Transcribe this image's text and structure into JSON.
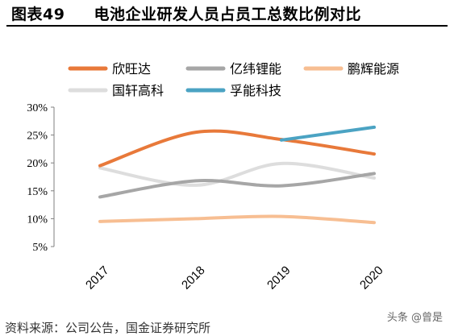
{
  "figure": {
    "number": "图表49",
    "title": "电池企业研发人员占员工总数比例对比"
  },
  "source": "资料来源：公司公告，国金证券研究所",
  "watermark": "头条 @曾是",
  "colors": {
    "欣旺达": "#E8793A",
    "亿纬锂能": "#A6A6A6",
    "鹏辉能源": "#F7BE92",
    "国轩高科": "#DDDDDD",
    "孚能科技": "#4BA3C3"
  },
  "chart_data": {
    "type": "line",
    "categories": [
      "2017",
      "2018",
      "2019",
      "2020"
    ],
    "ylim": [
      5,
      30
    ],
    "yticks": [
      "5%",
      "10%",
      "15%",
      "20%",
      "25%",
      "30%"
    ],
    "series": [
      {
        "name": "欣旺达",
        "values": [
          19.5,
          25.5,
          24.2,
          21.6
        ]
      },
      {
        "name": "亿纬锂能",
        "values": [
          13.9,
          16.8,
          15.9,
          18.1
        ]
      },
      {
        "name": "鹏辉能源",
        "values": [
          9.5,
          10.0,
          10.4,
          9.3
        ]
      },
      {
        "name": "国轩高科",
        "values": [
          19.1,
          16.0,
          19.9,
          17.3
        ]
      },
      {
        "name": "孚能科技",
        "values": [
          null,
          null,
          24.1,
          26.4
        ]
      }
    ],
    "legend_position": "top",
    "grid": false
  }
}
